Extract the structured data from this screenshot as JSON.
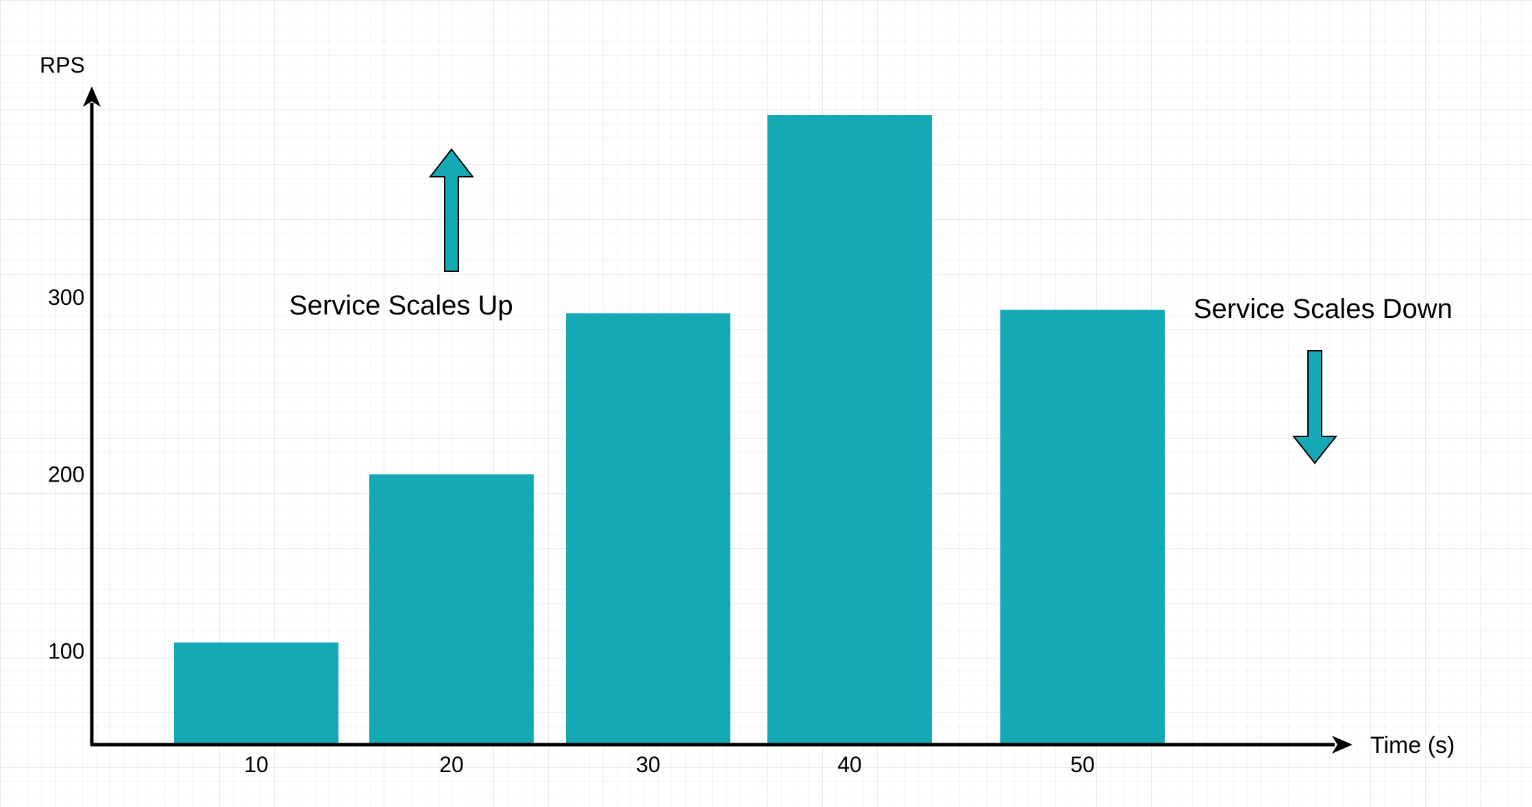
{
  "chart_data": {
    "type": "bar",
    "ylabel": "RPS",
    "xlabel": "Time (s)",
    "categories": [
      "10",
      "20",
      "30",
      "40",
      "50"
    ],
    "values": [
      105,
      200,
      291,
      403,
      293
    ],
    "y_ticks": [
      100,
      200,
      300
    ],
    "ylim": [
      48,
      415
    ],
    "grid": true,
    "legend": "none",
    "bar_color": "#15a9b6",
    "annotations": [
      {
        "text": "Service Scales Up",
        "arrow": "up"
      },
      {
        "text": "Service Scales Down",
        "arrow": "down"
      }
    ]
  }
}
